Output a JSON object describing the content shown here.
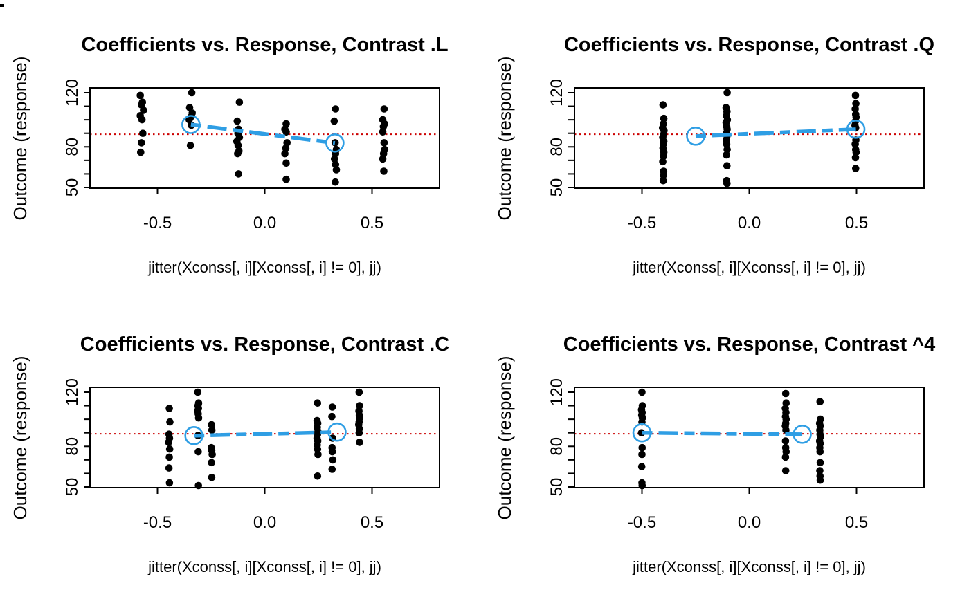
{
  "figure_title": "Coefficients vs. Response scatter panels",
  "colors": {
    "background": "#ffffff",
    "point": "#000000",
    "axis": "#000000",
    "fit_line_blue": "#2f9ee4",
    "reference_red": "#cc0000"
  },
  "axes": {
    "xlabel": "jitter(Xconss[, i][Xconss[, i] != 0], jj)",
    "ylabel": "Outcome (response)",
    "x_tick_values": [
      -0.5,
      0.0,
      0.5
    ],
    "x_tick_labels": [
      "-0.5",
      "0.0",
      "0.5"
    ],
    "y_tick_values": [
      50,
      60,
      70,
      80,
      90,
      100,
      110,
      120
    ],
    "y_labeled_ticks": [
      {
        "value": 50,
        "label": "50"
      },
      {
        "value": 80,
        "label": "80"
      },
      {
        "value": 120,
        "label": "120"
      }
    ],
    "xlim": [
      -0.815,
      0.815
    ],
    "ylim": [
      49.5,
      123.6
    ],
    "reference_line_y": 89.3,
    "grid": "off",
    "legend": "none"
  },
  "chart_data": [
    {
      "type": "scatter",
      "title": "Coefficients vs. Response, Contrast .L",
      "contrast": ".L",
      "points": [
        [
          -0.58,
          118
        ],
        [
          -0.57,
          113
        ],
        [
          -0.575,
          111
        ],
        [
          -0.565,
          107
        ],
        [
          -0.58,
          103
        ],
        [
          -0.572,
          100
        ],
        [
          -0.568,
          90
        ],
        [
          -0.575,
          83
        ],
        [
          -0.578,
          76
        ],
        [
          -0.34,
          120
        ],
        [
          -0.35,
          109
        ],
        [
          -0.338,
          105
        ],
        [
          -0.345,
          102
        ],
        [
          -0.352,
          100
        ],
        [
          -0.342,
          96
        ],
        [
          -0.346,
          81
        ],
        [
          -0.118,
          113
        ],
        [
          -0.128,
          99
        ],
        [
          -0.122,
          93
        ],
        [
          -0.125,
          90
        ],
        [
          -0.118,
          87
        ],
        [
          -0.13,
          84
        ],
        [
          -0.124,
          81
        ],
        [
          -0.12,
          77
        ],
        [
          -0.126,
          75
        ],
        [
          -0.122,
          60
        ],
        [
          0.1,
          97
        ],
        [
          0.094,
          93
        ],
        [
          0.1,
          91
        ],
        [
          0.104,
          83
        ],
        [
          0.098,
          79
        ],
        [
          0.094,
          75
        ],
        [
          0.1,
          68
        ],
        [
          0.1,
          56
        ],
        [
          0.33,
          108
        ],
        [
          0.324,
          99
        ],
        [
          0.328,
          83
        ],
        [
          0.334,
          78
        ],
        [
          0.33,
          75
        ],
        [
          0.325,
          71
        ],
        [
          0.33,
          67
        ],
        [
          0.334,
          63
        ],
        [
          0.329,
          54
        ],
        [
          0.556,
          108
        ],
        [
          0.55,
          100
        ],
        [
          0.558,
          97
        ],
        [
          0.553,
          95
        ],
        [
          0.55,
          91
        ],
        [
          0.556,
          83
        ],
        [
          0.559,
          78
        ],
        [
          0.554,
          75
        ],
        [
          0.55,
          71
        ],
        [
          0.555,
          62
        ]
      ],
      "fit_line": [
        [
          -0.344,
          96.5
        ],
        [
          0.327,
          82.8
        ]
      ]
    },
    {
      "type": "scatter",
      "title": "Coefficients vs. Response, Contrast .Q",
      "contrast": ".Q",
      "points": [
        [
          -0.402,
          111
        ],
        [
          -0.398,
          101
        ],
        [
          -0.4,
          97
        ],
        [
          -0.404,
          94
        ],
        [
          -0.397,
          92
        ],
        [
          -0.4,
          89
        ],
        [
          -0.403,
          87
        ],
        [
          -0.398,
          84
        ],
        [
          -0.4,
          82
        ],
        [
          -0.402,
          79
        ],
        [
          -0.398,
          76
        ],
        [
          -0.4,
          73
        ],
        [
          -0.403,
          69
        ],
        [
          -0.399,
          62
        ],
        [
          -0.4,
          59
        ],
        [
          -0.401,
          55
        ],
        [
          -0.103,
          120
        ],
        [
          -0.108,
          109
        ],
        [
          -0.104,
          106
        ],
        [
          -0.106,
          103
        ],
        [
          -0.102,
          100
        ],
        [
          -0.108,
          98
        ],
        [
          -0.105,
          95
        ],
        [
          -0.103,
          93
        ],
        [
          -0.106,
          90
        ],
        [
          -0.104,
          88
        ],
        [
          -0.107,
          85
        ],
        [
          -0.105,
          82
        ],
        [
          -0.103,
          78
        ],
        [
          -0.106,
          74
        ],
        [
          -0.104,
          66
        ],
        [
          -0.105,
          55
        ],
        [
          -0.104,
          53
        ],
        [
          0.495,
          118
        ],
        [
          0.497,
          112
        ],
        [
          0.494,
          108
        ],
        [
          0.496,
          104
        ],
        [
          0.498,
          102
        ],
        [
          0.495,
          99
        ],
        [
          0.493,
          96
        ],
        [
          0.496,
          94
        ],
        [
          0.497,
          85
        ],
        [
          0.494,
          82
        ],
        [
          0.496,
          78
        ],
        [
          0.498,
          76
        ],
        [
          0.495,
          72
        ],
        [
          0.496,
          64
        ]
      ],
      "fit_line": [
        [
          -0.25,
          87.9
        ],
        [
          0.497,
          93.0
        ]
      ]
    },
    {
      "type": "scatter",
      "title": "Coefficients vs. Response, Contrast .C",
      "contrast": ".C",
      "points": [
        [
          -0.445,
          108
        ],
        [
          -0.442,
          98
        ],
        [
          -0.446,
          89
        ],
        [
          -0.444,
          86
        ],
        [
          -0.448,
          83
        ],
        [
          -0.443,
          78
        ],
        [
          -0.445,
          72
        ],
        [
          -0.446,
          64
        ],
        [
          -0.444,
          53
        ],
        [
          -0.312,
          120
        ],
        [
          -0.308,
          112
        ],
        [
          -0.311,
          110
        ],
        [
          -0.309,
          108
        ],
        [
          -0.312,
          106
        ],
        [
          -0.31,
          104
        ],
        [
          -0.308,
          101
        ],
        [
          -0.311,
          88
        ],
        [
          -0.31,
          76
        ],
        [
          -0.309,
          51
        ],
        [
          -0.248,
          96
        ],
        [
          -0.246,
          92
        ],
        [
          -0.249,
          79
        ],
        [
          -0.247,
          77
        ],
        [
          -0.245,
          74
        ],
        [
          -0.248,
          68
        ],
        [
          -0.247,
          57
        ],
        [
          0.246,
          112
        ],
        [
          0.244,
          99
        ],
        [
          0.247,
          97
        ],
        [
          0.245,
          94
        ],
        [
          0.248,
          91
        ],
        [
          0.246,
          89
        ],
        [
          0.244,
          86
        ],
        [
          0.247,
          84
        ],
        [
          0.245,
          81
        ],
        [
          0.246,
          78
        ],
        [
          0.248,
          74
        ],
        [
          0.246,
          58
        ],
        [
          0.315,
          109
        ],
        [
          0.313,
          102
        ],
        [
          0.316,
          86
        ],
        [
          0.314,
          79
        ],
        [
          0.315,
          76
        ],
        [
          0.317,
          70
        ],
        [
          0.314,
          63
        ],
        [
          0.44,
          120
        ],
        [
          0.442,
          110
        ],
        [
          0.439,
          106
        ],
        [
          0.441,
          103
        ],
        [
          0.443,
          101
        ],
        [
          0.44,
          98
        ],
        [
          0.438,
          96
        ],
        [
          0.441,
          93
        ],
        [
          0.44,
          90
        ],
        [
          0.442,
          83
        ]
      ],
      "fit_line": [
        [
          -0.33,
          87.9
        ],
        [
          0.337,
          90.5
        ]
      ]
    },
    {
      "type": "scatter",
      "title": "Coefficients vs. Response, Contrast ^4",
      "contrast": "^4",
      "points": [
        [
          -0.5,
          120
        ],
        [
          -0.498,
          110
        ],
        [
          -0.502,
          107
        ],
        [
          -0.499,
          105
        ],
        [
          -0.501,
          103
        ],
        [
          -0.498,
          101
        ],
        [
          -0.5,
          98
        ],
        [
          -0.502,
          90
        ],
        [
          -0.499,
          79
        ],
        [
          -0.5,
          74
        ],
        [
          -0.501,
          65
        ],
        [
          -0.5,
          53
        ],
        [
          -0.499,
          51
        ],
        [
          0.17,
          119
        ],
        [
          0.172,
          112
        ],
        [
          0.168,
          108
        ],
        [
          0.171,
          105
        ],
        [
          0.169,
          102
        ],
        [
          0.172,
          100
        ],
        [
          0.17,
          97
        ],
        [
          0.168,
          95
        ],
        [
          0.171,
          92
        ],
        [
          0.169,
          84
        ],
        [
          0.17,
          79
        ],
        [
          0.172,
          76
        ],
        [
          0.169,
          72
        ],
        [
          0.17,
          62
        ],
        [
          0.33,
          113
        ],
        [
          0.332,
          100
        ],
        [
          0.328,
          97
        ],
        [
          0.331,
          95
        ],
        [
          0.329,
          92
        ],
        [
          0.33,
          89
        ],
        [
          0.332,
          87
        ],
        [
          0.328,
          84
        ],
        [
          0.331,
          82
        ],
        [
          0.329,
          79
        ],
        [
          0.33,
          76
        ],
        [
          0.331,
          68
        ],
        [
          0.329,
          62
        ],
        [
          0.33,
          58
        ],
        [
          0.331,
          55
        ]
      ],
      "fit_line": [
        [
          -0.5,
          90.0
        ],
        [
          0.247,
          88.9
        ]
      ]
    }
  ]
}
